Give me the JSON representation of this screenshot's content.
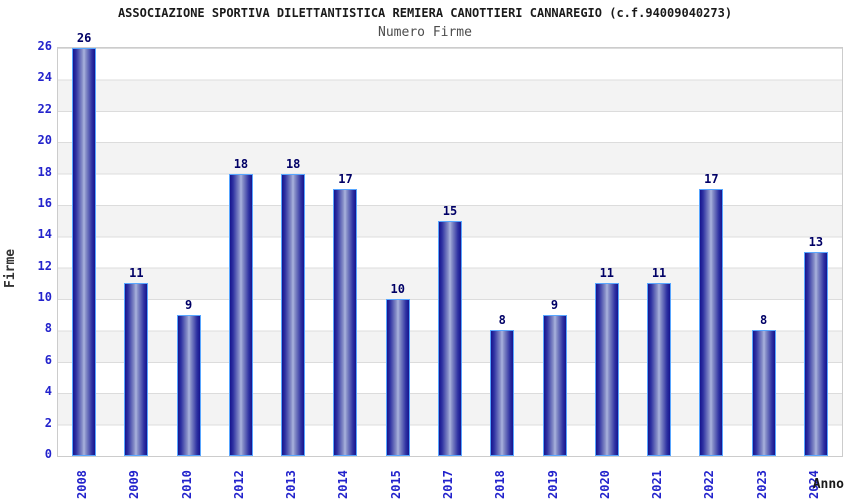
{
  "title": "ASSOCIAZIONE SPORTIVA DILETTANTISTICA REMIERA CANOTTIERI CANNAREGIO (c.f.94009040273)",
  "subtitle": "Numero Firme",
  "chart_data": {
    "type": "bar",
    "title": "Numero Firme",
    "categories": [
      "2008",
      "2009",
      "2010",
      "2012",
      "2013",
      "2014",
      "2015",
      "2017",
      "2018",
      "2019",
      "2020",
      "2021",
      "2022",
      "2023",
      "2024"
    ],
    "values": [
      26,
      11,
      9,
      18,
      18,
      17,
      10,
      15,
      8,
      9,
      11,
      11,
      17,
      8,
      13
    ],
    "xlabel": "Anno",
    "ylabel": "Firme",
    "ylim": [
      0,
      26
    ],
    "yticks": [
      0,
      2,
      4,
      6,
      8,
      10,
      12,
      14,
      16,
      18,
      20,
      22,
      24,
      26
    ],
    "grid": true,
    "legend_position": "none",
    "bands": "alternating horizontal 2-unit bands, white and light gray"
  },
  "colors": {
    "title_color": "#1a1a1a",
    "subtitle_color": "#4d4d4d",
    "axis_tick_label": "#2323cc",
    "value_label": "#000066",
    "bar_edge_dark": "#16148e",
    "bar_mid": "#2e31a2",
    "bar_center_light": "#aab3de",
    "bar_border": "#58a6ff",
    "band_alt_gray": "#f3f3f3",
    "grid_line": "#dcdcdc",
    "plot_border": "#cccccc",
    "axis_title_color": "#333333"
  }
}
